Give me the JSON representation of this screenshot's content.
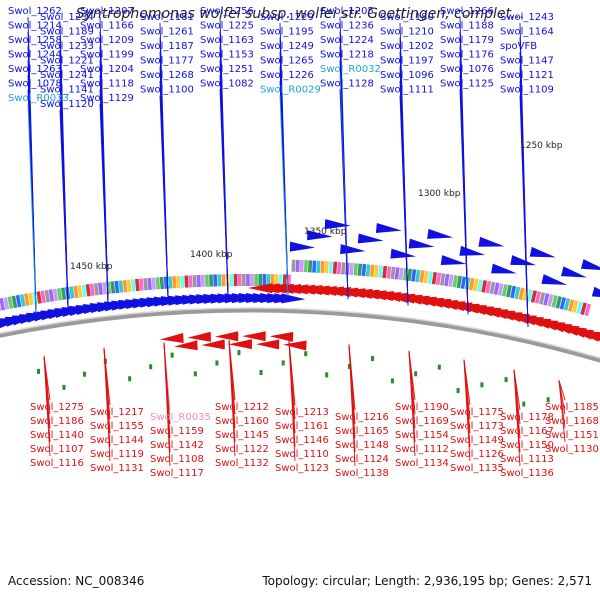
{
  "title": "Syntrophomonas wolfei subsp. wolfei str. Goettingen, complet...",
  "footer": {
    "accession": "Accession: NC_008346",
    "summary": "Topology: circular; Length: 2,936,195 bp; Genes: 2,571"
  },
  "colors": {
    "forward_strand": "#1010e0",
    "reverse_strand": "#e01010",
    "rna_forward": "#20a0e0",
    "rna_reverse": "#f090b0",
    "backbone": "#888888"
  },
  "kbp_ticks": [
    "1250 kbp",
    "1300 kbp",
    "1350 kbp",
    "1400 kbp",
    "1450 kbp"
  ],
  "top_labels": [
    "Swol_1262",
    "Swol_1234",
    "Swol_1207",
    "Swol_1181",
    "Swol_1256",
    "Swol_1229",
    "Swol_1205",
    "Swol_1180",
    "Swol_1266",
    "Swol_1243",
    "Swol_1214",
    "Swol_1189",
    "Swol_1166",
    "Swol_1261",
    "Swol_1225",
    "Swol_1195",
    "Swol_1236",
    "Swol_1210",
    "Swol_1188",
    "Swol_1164",
    "Swol_1258",
    "Swol_1233",
    "Swol_1209",
    "Swol_1187",
    "Swol_1163",
    "Swol_1249",
    "Swol_1224",
    "Swol_1202",
    "Swol_1179",
    "spoVFB",
    "Swol_1244",
    "Swol_1221",
    "Swol_1199",
    "Swol_1177",
    "Swol_1153",
    "Swol_1265",
    "Swol_1218",
    "Swol_1197",
    "Swol_1176",
    "Swol_1147",
    "Swol_1263",
    "Swol_1241",
    "Swol_1204",
    "Swol_1268",
    "Swol_1251",
    "Swol_1226",
    "Swol_R0032",
    "Swol_1096",
    "Swol_1076",
    "Swol_1121",
    "Swol_1078",
    "Swol_1141",
    "Swol_1118",
    "Swol_1100",
    "Swol_1082",
    "Swol_R0029",
    "Swol_1128",
    "Swol_1111",
    "Swol_1125",
    "Swol_1109",
    "Swol_R0033",
    "Swol_1120",
    "Swol_1129"
  ],
  "bottom_labels": [
    "Swol_1275",
    "Swol_1217",
    "Swol_R0035",
    "Swol_1212",
    "Swol_1213",
    "Swol_1216",
    "Swol_1190",
    "Swol_1175",
    "Swol_1178",
    "Swol_1185",
    "Swol_1186",
    "Swol_1155",
    "Swol_1159",
    "Swol_1160",
    "Swol_1161",
    "Swol_1165",
    "Swol_1169",
    "Swol_1173",
    "Swol_1167",
    "Swol_1168",
    "Swol_1140",
    "Swol_1144",
    "Swol_1142",
    "Swol_1145",
    "Swol_1146",
    "Swol_1148",
    "Swol_1154",
    "Swol_1149",
    "Swol_1150",
    "Swol_1151",
    "Swol_1107",
    "Swol_1119",
    "Swol_1108",
    "Swol_1122",
    "Swol_1110",
    "Swol_1124",
    "Swol_1112",
    "Swol_1126",
    "Swol_1113",
    "Swol_1130",
    "Swol_1116",
    "Swol_1131",
    "Swol_1117",
    "Swol_1132",
    "Swol_1123",
    "Swol_1138",
    "Swol_1134",
    "Swol_1135",
    "Swol_1136"
  ]
}
